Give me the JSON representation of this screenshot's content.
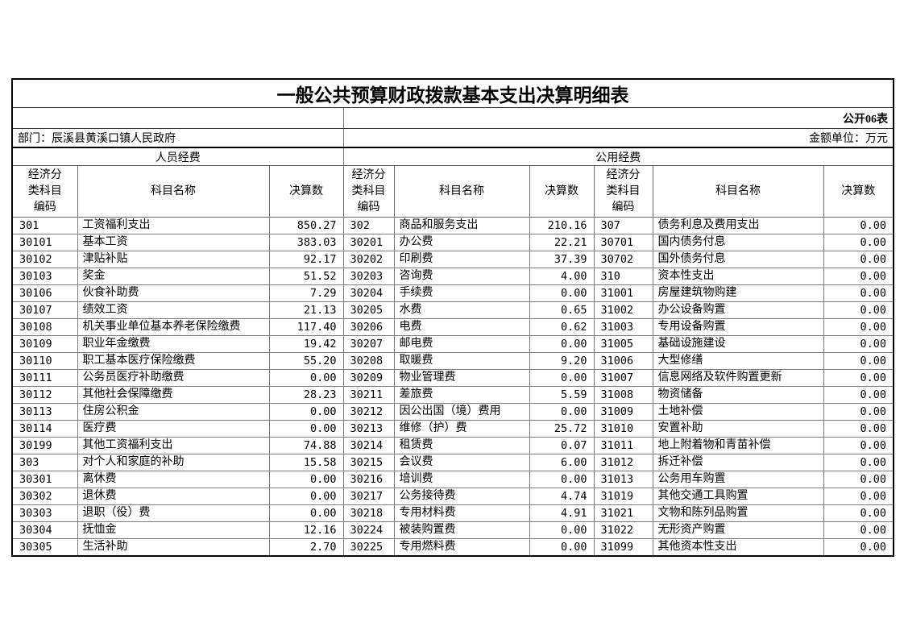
{
  "title": "一般公共预算财政拨款基本支出决算明细表",
  "meta": {
    "sheet_label": "公开06表",
    "department": "部门：辰溪县黄溪口镇人民政府",
    "unit": "金额单位：万元"
  },
  "sections": {
    "personnel": "人员经费",
    "public": "公用经费"
  },
  "column_headers": [
    "经济分类科目编码",
    "科目名称",
    "决算数"
  ],
  "groups": [
    {
      "section": "人员经费",
      "rows": [
        [
          "301",
          "工资福利支出",
          "850.27"
        ],
        [
          "30101",
          "基本工资",
          "383.03"
        ],
        [
          "30102",
          "津贴补贴",
          "92.17"
        ],
        [
          "30103",
          "奖金",
          "51.52"
        ],
        [
          "30106",
          "伙食补助费",
          "7.29"
        ],
        [
          "30107",
          "绩效工资",
          "21.13"
        ],
        [
          "30108",
          "机关事业单位基本养老保险缴费",
          "117.40"
        ],
        [
          "30109",
          "职业年金缴费",
          "19.42"
        ],
        [
          "30110",
          "职工基本医疗保险缴费",
          "55.20"
        ],
        [
          "30111",
          "公务员医疗补助缴费",
          "0.00"
        ],
        [
          "30112",
          "其他社会保障缴费",
          "28.23"
        ],
        [
          "30113",
          "住房公积金",
          "0.00"
        ],
        [
          "30114",
          "医疗费",
          "0.00"
        ],
        [
          "30199",
          "其他工资福利支出",
          "74.88"
        ],
        [
          "303",
          "对个人和家庭的补助",
          "15.58"
        ],
        [
          "30301",
          "离休费",
          "0.00"
        ],
        [
          "30302",
          "退休费",
          "0.00"
        ],
        [
          "30303",
          "退职（役）费",
          "0.00"
        ],
        [
          "30304",
          "抚恤金",
          "12.16"
        ],
        [
          "30305",
          "生活补助",
          "2.70"
        ]
      ]
    },
    {
      "section": "公用经费",
      "rows": [
        [
          "302",
          "商品和服务支出",
          "210.16"
        ],
        [
          "30201",
          "办公费",
          "22.21"
        ],
        [
          "30202",
          "印刷费",
          "37.39"
        ],
        [
          "30203",
          "咨询费",
          "4.00"
        ],
        [
          "30204",
          "手续费",
          "0.00"
        ],
        [
          "30205",
          "水费",
          "0.65"
        ],
        [
          "30206",
          "电费",
          "0.62"
        ],
        [
          "30207",
          "邮电费",
          "0.00"
        ],
        [
          "30208",
          "取暖费",
          "9.20"
        ],
        [
          "30209",
          "物业管理费",
          "0.00"
        ],
        [
          "30211",
          "差旅费",
          "5.59"
        ],
        [
          "30212",
          "因公出国（境）费用",
          "0.00"
        ],
        [
          "30213",
          "维修（护）费",
          "25.72"
        ],
        [
          "30214",
          "租赁费",
          "0.07"
        ],
        [
          "30215",
          "会议费",
          "6.00"
        ],
        [
          "30216",
          "培训费",
          "0.00"
        ],
        [
          "30217",
          "公务接待费",
          "4.74"
        ],
        [
          "30218",
          "专用材料费",
          "4.91"
        ],
        [
          "30224",
          "被装购置费",
          "0.00"
        ],
        [
          "30225",
          "专用燃料费",
          "0.00"
        ]
      ]
    },
    {
      "section": "公用经费",
      "rows": [
        [
          "307",
          "债务利息及费用支出",
          "0.00"
        ],
        [
          "30701",
          "国内债务付息",
          "0.00"
        ],
        [
          "30702",
          "国外债务付息",
          "0.00"
        ],
        [
          "310",
          "资本性支出",
          "0.00"
        ],
        [
          "31001",
          "房屋建筑物购建",
          "0.00"
        ],
        [
          "31002",
          "办公设备购置",
          "0.00"
        ],
        [
          "31003",
          "专用设备购置",
          "0.00"
        ],
        [
          "31005",
          "基础设施建设",
          "0.00"
        ],
        [
          "31006",
          "大型修缮",
          "0.00"
        ],
        [
          "31007",
          "信息网络及软件购置更新",
          "0.00"
        ],
        [
          "31008",
          "物资储备",
          "0.00"
        ],
        [
          "31009",
          "土地补偿",
          "0.00"
        ],
        [
          "31010",
          "安置补助",
          "0.00"
        ],
        [
          "31011",
          "地上附着物和青苗补偿",
          "0.00"
        ],
        [
          "31012",
          "拆迁补偿",
          "0.00"
        ],
        [
          "31013",
          "公务用车购置",
          "0.00"
        ],
        [
          "31019",
          "其他交通工具购置",
          "0.00"
        ],
        [
          "31021",
          "文物和陈列品购置",
          "0.00"
        ],
        [
          "31022",
          "无形资产购置",
          "0.00"
        ],
        [
          "31099",
          "其他资本性支出",
          "0.00"
        ]
      ]
    }
  ]
}
